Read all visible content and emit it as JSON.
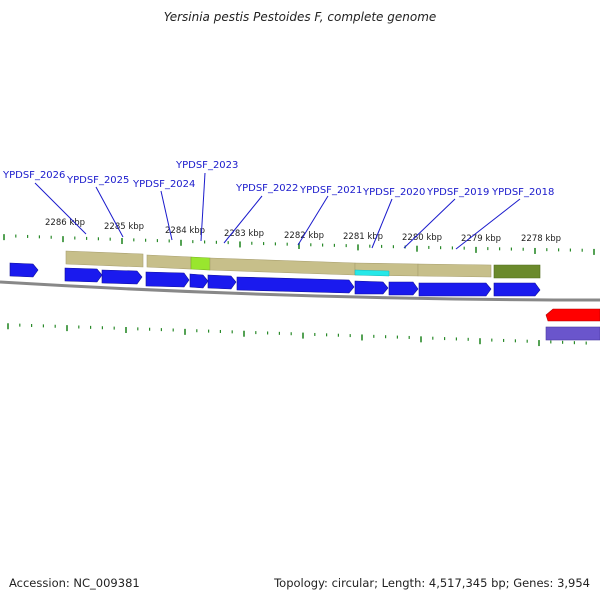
{
  "title": "Yersinia pestis Pestoides F, complete genome",
  "footer": {
    "accession": "Accession: NC_009381",
    "summary": "Topology: circular; Length: 4,517,345 bp; Genes: 3,954"
  },
  "ruler": [
    {
      "label": "2286 kbp"
    },
    {
      "label": "2285 kbp"
    },
    {
      "label": "2284 kbp"
    },
    {
      "label": "2283 kbp"
    },
    {
      "label": "2282 kbp"
    },
    {
      "label": "2281 kbp"
    },
    {
      "label": "2280 kbp"
    },
    {
      "label": "2279 kbp"
    },
    {
      "label": "2278 kbp"
    }
  ],
  "gene_labels": [
    {
      "text": "YPDSF_2026"
    },
    {
      "text": "YPDSF_2025"
    },
    {
      "text": "YPDSF_2024"
    },
    {
      "text": "YPDSF_2023"
    },
    {
      "text": "YPDSF_2022"
    },
    {
      "text": "YPDSF_2021"
    },
    {
      "text": "YPDSF_2020"
    },
    {
      "text": "YPDSF_2019"
    },
    {
      "text": "YPDSF_2018"
    }
  ],
  "colors": {
    "cds": "#1a1aee",
    "feature_tan": "#c7bf8a",
    "feature_olive": "#6b8a2c",
    "feature_green": "#99e62e",
    "feature_cyan": "#25e8e8",
    "backbone": "#888888",
    "tick": "#2a8a2a",
    "label_blue": "#1a1acc",
    "red": "#ff0000",
    "purple": "#6a55cc"
  }
}
